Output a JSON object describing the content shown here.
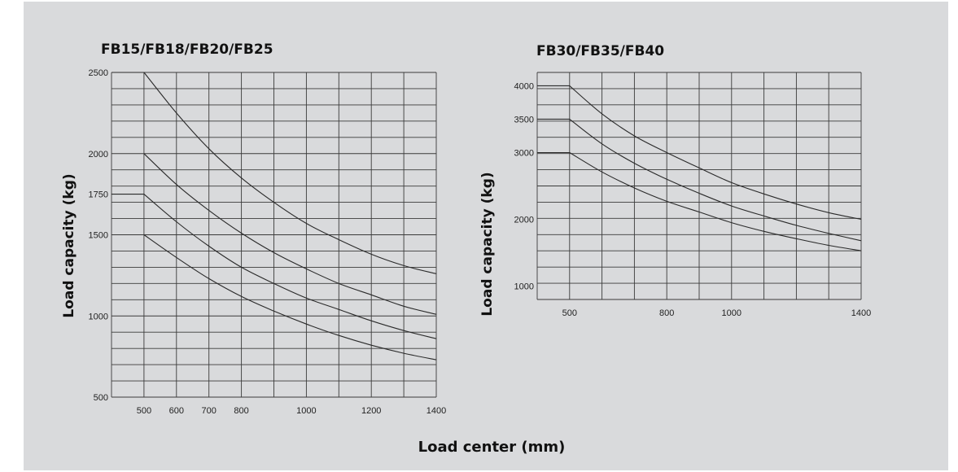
{
  "xlabel": "Load center (mm)",
  "chart_data": [
    {
      "type": "line",
      "title": "FB15/FB18/FB20/FB25",
      "ylabel": "Load capacity (kg)",
      "xlabel": "Load center (mm)",
      "x_ticks": [
        500,
        600,
        700,
        800,
        1000,
        1200,
        1400
      ],
      "y_ticks": [
        500,
        1000,
        1500,
        1750,
        2000,
        2500
      ],
      "ylim": [
        500,
        2500
      ],
      "xlim": [
        400,
        1400
      ],
      "series": [
        {
          "x": [
            400,
            500,
            600,
            700,
            800,
            900,
            1000,
            1100,
            1200,
            1300,
            1400
          ],
          "values": [
            2500,
            2500,
            2250,
            2030,
            1850,
            1700,
            1570,
            1470,
            1380,
            1310,
            1260
          ]
        },
        {
          "x": [
            500,
            600,
            700,
            800,
            900,
            1000,
            1100,
            1200,
            1300,
            1400
          ],
          "values": [
            2000,
            1810,
            1650,
            1510,
            1390,
            1290,
            1200,
            1130,
            1060,
            1010
          ]
        },
        {
          "x": [
            400,
            500,
            600,
            700,
            800,
            900,
            1000,
            1100,
            1200,
            1300,
            1400
          ],
          "values": [
            1750,
            1750,
            1580,
            1430,
            1300,
            1200,
            1110,
            1040,
            970,
            910,
            860
          ]
        },
        {
          "x": [
            500,
            600,
            700,
            800,
            900,
            1000,
            1100,
            1200,
            1300,
            1400
          ],
          "values": [
            1500,
            1360,
            1230,
            1120,
            1030,
            950,
            880,
            820,
            770,
            730
          ]
        }
      ]
    },
    {
      "type": "line",
      "title": "FB30/FB35/FB40",
      "ylabel": "Load capacity (kg)",
      "x_ticks": [
        500,
        800,
        1000,
        1400
      ],
      "y_ticks": [
        1000,
        2000,
        3000,
        3500,
        4000
      ],
      "ylim": [
        800,
        4200
      ],
      "xlim": [
        400,
        1400
      ],
      "series": [
        {
          "x": [
            400,
            500,
            600,
            700,
            800,
            900,
            1000,
            1100,
            1200,
            1300,
            1400
          ],
          "values": [
            4000,
            4000,
            3580,
            3250,
            3000,
            2770,
            2550,
            2380,
            2230,
            2100,
            2000
          ]
        },
        {
          "x": [
            400,
            500,
            600,
            700,
            800,
            900,
            1000,
            1100,
            1200,
            1300,
            1400
          ],
          "values": [
            3500,
            3500,
            3130,
            2840,
            2600,
            2390,
            2200,
            2050,
            1910,
            1790,
            1680
          ]
        },
        {
          "x": [
            400,
            500,
            600,
            700,
            800,
            900,
            1000,
            1100,
            1200,
            1300,
            1400
          ],
          "values": [
            3000,
            3000,
            2710,
            2470,
            2270,
            2110,
            1950,
            1820,
            1710,
            1610,
            1530
          ]
        }
      ]
    }
  ]
}
